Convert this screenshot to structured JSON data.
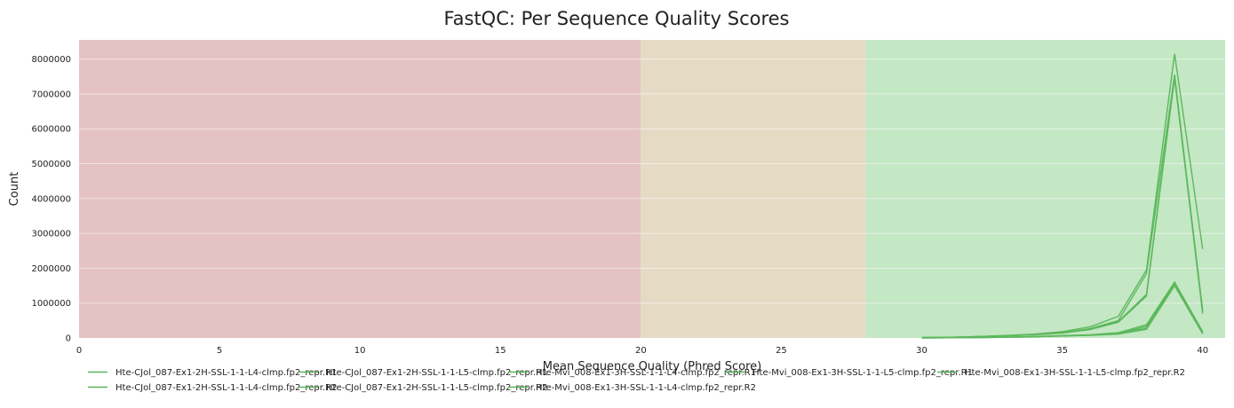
{
  "chart_data": {
    "type": "line",
    "title": "FastQC: Per Sequence Quality Scores",
    "xlabel": "Mean Sequence Quality (Phred Score)",
    "ylabel": "Count",
    "xlim": [
      0,
      40.8
    ],
    "ylim": [
      0,
      8550000
    ],
    "x_ticks": [
      0,
      5,
      10,
      15,
      20,
      25,
      30,
      35,
      40
    ],
    "y_ticks": [
      0,
      1000000,
      2000000,
      3000000,
      4000000,
      5000000,
      6000000,
      7000000,
      8000000
    ],
    "grid": "horizontal",
    "bands": [
      {
        "from": 0,
        "to": 20,
        "color": "#e4c2c3"
      },
      {
        "from": 20,
        "to": 28,
        "color": "#e5dbc4"
      },
      {
        "from": 28,
        "to": 40.8,
        "color": "#c4e7c4"
      }
    ],
    "line_color": "#5cb85c",
    "legend_position": "bottom",
    "x": [
      30,
      31,
      32,
      33,
      34,
      35,
      36,
      37,
      38,
      39,
      40
    ],
    "series": [
      {
        "name": "Hte-CJol_087-Ex1-2H-SSL-1-1-L4-clmp.fp2_repr.R1",
        "values": [
          3000,
          6000,
          12000,
          22000,
          38000,
          65000,
          90000,
          150000,
          380000,
          1600000,
          180000
        ]
      },
      {
        "name": "Hte-CJol_087-Ex1-2H-SSL-1-1-L5-clmp.fp2_repr.R1",
        "values": [
          2500,
          5000,
          10000,
          20000,
          34000,
          60000,
          80000,
          130000,
          330000,
          1550000,
          160000
        ]
      },
      {
        "name": "Hte-Mvi_008-Ex1-3H-SSL-1-1-L4-clmp.fp2_repr.R1",
        "values": [
          10000,
          20000,
          40000,
          70000,
          110000,
          180000,
          320000,
          620000,
          1950000,
          8150000,
          2550000
        ]
      },
      {
        "name": "Hte-Mvi_008-Ex1-3H-SSL-1-1-L5-clmp.fp2_repr.R1",
        "values": [
          9000,
          18000,
          36000,
          62000,
          95000,
          150000,
          270000,
          500000,
          1850000,
          7550000,
          750000
        ]
      },
      {
        "name": "Hte-CJol_087-Ex1-2H-SSL-1-1-L4-clmp.fp2_repr.R2",
        "values": [
          2800,
          5500,
          11000,
          21000,
          36000,
          60000,
          85000,
          120000,
          280000,
          1550000,
          130000
        ]
      },
      {
        "name": "Hte-CJol_087-Ex1-2H-SSL-1-1-L5-clmp.fp2_repr.R2",
        "values": [
          2300,
          4800,
          9500,
          19000,
          32000,
          55000,
          75000,
          110000,
          250000,
          1500000,
          120000
        ]
      },
      {
        "name": "Hte-Mvi_008-Ex1-3H-SSL-1-1-L4-clmp.fp2_repr.R2",
        "values": [
          9500,
          19000,
          38000,
          66000,
          100000,
          160000,
          250000,
          470000,
          1250000,
          7500000,
          800000
        ]
      },
      {
        "name": "Hte-Mvi_008-Ex1-3H-SSL-1-1-L5-clmp.fp2_repr.R2",
        "values": [
          8500,
          17000,
          34000,
          60000,
          90000,
          140000,
          240000,
          450000,
          1200000,
          7450000,
          700000
        ]
      }
    ],
    "legend_rows": [
      [
        "Hte-CJol_087-Ex1-2H-SSL-1-1-L4-clmp.fp2_repr.R1",
        "Hte-CJol_087-Ex1-2H-SSL-1-1-L5-clmp.fp2_repr.R1",
        "Hte-Mvi_008-Ex1-3H-SSL-1-1-L4-clmp.fp2_repr.R1",
        "Hte-Mvi_008-Ex1-3H-SSL-1-1-L5-clmp.fp2_repr.R1",
        "Hte-Mvi_008-Ex1-3H-SSL-1-1-L5-clmp.fp2_repr.R2"
      ],
      [
        "Hte-CJol_087-Ex1-2H-SSL-1-1-L4-clmp.fp2_repr.R2",
        "Hte-CJol_087-Ex1-2H-SSL-1-1-L5-clmp.fp2_repr.R2",
        "Hte-Mvi_008-Ex1-3H-SSL-1-1-L4-clmp.fp2_repr.R2"
      ]
    ]
  }
}
